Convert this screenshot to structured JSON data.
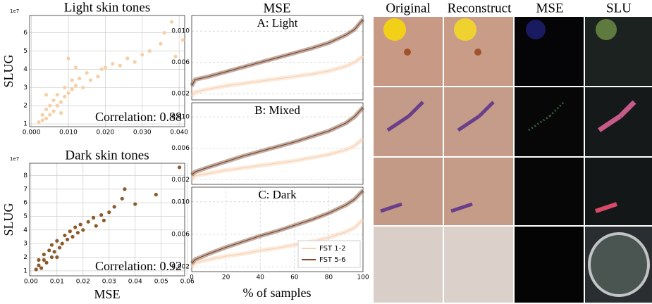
{
  "chart_data": [
    {
      "type": "scatter",
      "title": "Light skin tones",
      "ylabel": "SLUG",
      "y_offset_label": "1e7",
      "annotation": "Correlation: 0.88",
      "color": "#f6cfa6",
      "grid": true,
      "x": [
        0.002,
        0.003,
        0.003,
        0.004,
        0.004,
        0.005,
        0.005,
        0.006,
        0.006,
        0.007,
        0.007,
        0.008,
        0.008,
        0.009,
        0.009,
        0.01,
        0.011,
        0.011,
        0.012,
        0.013,
        0.014,
        0.015,
        0.016,
        0.018,
        0.019,
        0.02,
        0.022,
        0.024,
        0.026,
        0.028,
        0.03,
        0.032,
        0.035,
        0.036,
        0.038,
        0.039,
        0.041,
        0.004,
        0.01,
        0.012
      ],
      "values": [
        1.1,
        1.2,
        1.5,
        1.3,
        1.8,
        1.5,
        2.0,
        1.7,
        2.3,
        2.0,
        2.6,
        2.2,
        1.6,
        2.5,
        3.0,
        2.7,
        2.9,
        3.4,
        3.1,
        3.5,
        3.0,
        3.8,
        3.4,
        3.6,
        4.0,
        4.1,
        4.3,
        4.2,
        4.6,
        4.4,
        4.8,
        5.0,
        5.4,
        6.0,
        6.6,
        4.7,
        5.6,
        2.6,
        4.6,
        4.1
      ],
      "xlim": [
        -0.0005,
        0.0415
      ],
      "ylim": [
        0.85,
        6.95
      ],
      "xticks": [
        {
          "value": 0,
          "label": "0.000"
        },
        {
          "value": 0.01,
          "label": "0.010"
        },
        {
          "value": 0.02,
          "label": "0.020"
        },
        {
          "value": 0.03,
          "label": "0.030"
        },
        {
          "value": 0.04,
          "label": "0.040"
        }
      ],
      "yticks": [
        1,
        2,
        3,
        4,
        5,
        6
      ]
    },
    {
      "type": "scatter",
      "title": "Dark skin tones",
      "ylabel": "SLUG",
      "xlabel": "MSE",
      "y_offset_label": "1e7",
      "annotation": "Correlation: 0.92",
      "color": "#8b5a2b",
      "grid": true,
      "x": [
        0.002,
        0.003,
        0.004,
        0.005,
        0.005,
        0.006,
        0.007,
        0.008,
        0.008,
        0.009,
        0.01,
        0.011,
        0.012,
        0.013,
        0.014,
        0.015,
        0.016,
        0.017,
        0.018,
        0.019,
        0.02,
        0.022,
        0.024,
        0.025,
        0.027,
        0.028,
        0.03,
        0.032,
        0.035,
        0.036,
        0.04,
        0.048,
        0.057,
        0.003,
        0.01
      ],
      "values": [
        1.1,
        1.4,
        1.2,
        1.8,
        2.2,
        1.6,
        2.5,
        2.0,
        2.9,
        2.4,
        3.2,
        2.7,
        3.0,
        3.6,
        3.3,
        3.9,
        3.5,
        4.2,
        3.8,
        4.4,
        4.0,
        4.6,
        4.9,
        4.3,
        5.1,
        4.7,
        5.3,
        5.7,
        6.3,
        7.0,
        5.9,
        6.6,
        8.6,
        1.8,
        2.0
      ],
      "xlim": [
        -0.0005,
        0.059
      ],
      "ylim": [
        0.63,
        8.9
      ],
      "xticks": [
        {
          "value": 0,
          "label": "0.00"
        },
        {
          "value": 0.01,
          "label": "0.01"
        },
        {
          "value": 0.02,
          "label": "0.02"
        },
        {
          "value": 0.03,
          "label": "0.03"
        },
        {
          "value": 0.04,
          "label": "0.04"
        },
        {
          "value": 0.05,
          "label": "0.05"
        },
        {
          "value": 0.06,
          "label": "0.06"
        }
      ],
      "yticks": [
        1,
        2,
        3,
        4,
        5,
        6,
        7,
        8
      ]
    },
    {
      "type": "line",
      "title": "A: Light",
      "grid": true,
      "x": [
        0,
        2,
        10,
        20,
        30,
        40,
        50,
        60,
        70,
        80,
        90,
        95,
        100
      ],
      "series": [
        {
          "color": "#f8d2b4",
          "values": [
            0.0017,
            0.0022,
            0.0026,
            0.003,
            0.0033,
            0.0036,
            0.0039,
            0.0042,
            0.0045,
            0.0049,
            0.0055,
            0.006,
            0.0068
          ]
        },
        {
          "color": "#7b4a30",
          "values": [
            0.003,
            0.0038,
            0.0042,
            0.0048,
            0.0054,
            0.006,
            0.0066,
            0.0072,
            0.0078,
            0.0085,
            0.0095,
            0.0102,
            0.0115
          ]
        }
      ],
      "xlim": [
        0,
        100
      ],
      "ylim": [
        0.0012,
        0.012
      ],
      "yticks": [
        {
          "value": 0.002,
          "label": "0.002"
        },
        {
          "value": 0.006,
          "label": "0.006"
        },
        {
          "value": 0.01,
          "label": "0.010"
        }
      ]
    },
    {
      "type": "line",
      "title": "B: Mixed",
      "grid": true,
      "x": [
        0,
        2,
        10,
        20,
        30,
        40,
        50,
        60,
        70,
        80,
        90,
        95,
        100
      ],
      "series": [
        {
          "color": "#f8d2b4",
          "values": [
            0.002,
            0.0025,
            0.0028,
            0.0032,
            0.0035,
            0.0038,
            0.0041,
            0.0044,
            0.0048,
            0.0052,
            0.0058,
            0.0063,
            0.0072
          ]
        },
        {
          "color": "#7b4a30",
          "values": [
            0.0026,
            0.003,
            0.0036,
            0.0043,
            0.005,
            0.0056,
            0.0062,
            0.0068,
            0.0075,
            0.0082,
            0.0092,
            0.01,
            0.0112
          ]
        }
      ],
      "xlim": [
        0,
        100
      ],
      "ylim": [
        0.0014,
        0.0118
      ],
      "yticks": [
        {
          "value": 0.002,
          "label": "0.002"
        },
        {
          "value": 0.006,
          "label": "0.006"
        },
        {
          "value": 0.01,
          "label": "0.010"
        }
      ]
    },
    {
      "type": "line",
      "title": "C: Dark",
      "grid": true,
      "legend": "lower right",
      "x": [
        0,
        2,
        10,
        20,
        30,
        40,
        50,
        60,
        70,
        80,
        90,
        95,
        100
      ],
      "series": [
        {
          "name": "FST 1-2",
          "color": "#f8d2b4",
          "values": [
            0.002,
            0.0025,
            0.0029,
            0.0033,
            0.0036,
            0.004,
            0.0043,
            0.0047,
            0.0051,
            0.0056,
            0.0063,
            0.0068,
            0.0078
          ]
        },
        {
          "name": "FST 5-6",
          "color": "#7b4a30",
          "values": [
            0.0024,
            0.0029,
            0.0036,
            0.0044,
            0.0051,
            0.0058,
            0.0064,
            0.0071,
            0.0078,
            0.0086,
            0.0096,
            0.0103,
            0.0114
          ]
        }
      ],
      "xlim": [
        0,
        100
      ],
      "ylim": [
        0.0014,
        0.0118
      ],
      "xticks": [
        0,
        20,
        40,
        60,
        80,
        100
      ],
      "yticks": [
        {
          "value": 0.002,
          "label": "0.002"
        },
        {
          "value": 0.006,
          "label": "0.006"
        },
        {
          "value": 0.01,
          "label": "0.010"
        }
      ]
    }
  ],
  "line_group": {
    "title": "MSE",
    "xlabel": "% of samples"
  },
  "image_grid": {
    "columns": [
      "Original",
      "Reconstruct",
      "MSE",
      "SLU"
    ]
  }
}
